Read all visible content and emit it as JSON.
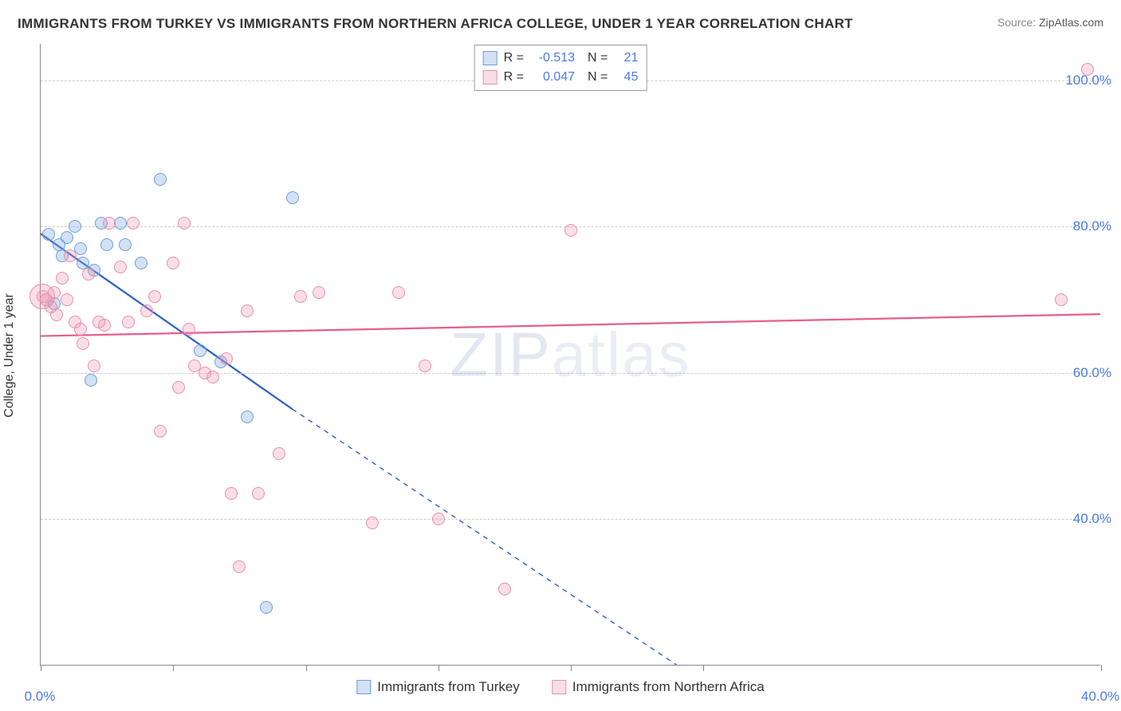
{
  "title": "IMMIGRANTS FROM TURKEY VS IMMIGRANTS FROM NORTHERN AFRICA COLLEGE, UNDER 1 YEAR CORRELATION CHART",
  "source_label": "Source:",
  "source_value": "ZipAtlas.com",
  "y_axis_label": "College, Under 1 year",
  "watermark_bold": "ZIP",
  "watermark_thin": "atlas",
  "chart": {
    "type": "scatter",
    "background_color": "#ffffff",
    "grid_color": "#cccccc",
    "axis_color": "#888888",
    "xlim": [
      0,
      40
    ],
    "ylim": [
      20,
      105
    ],
    "x_ticks": [
      0,
      5,
      10,
      15,
      20,
      25,
      40
    ],
    "x_tick_labels": {
      "0": "0.0%",
      "40": "40.0%"
    },
    "y_gridlines": [
      40,
      60,
      80,
      100
    ],
    "y_tick_labels": {
      "40": "40.0%",
      "60": "60.0%",
      "80": "80.0%",
      "100": "100.0%"
    },
    "tick_label_color": "#4a7ae2",
    "tick_label_fontsize": 17,
    "series": [
      {
        "name": "Immigrants from Turkey",
        "marker_fill": "rgba(127,169,226,0.35)",
        "marker_stroke": "#6f9fd8",
        "marker_radius": 8,
        "R_label": "R =",
        "R": "-0.513",
        "N_label": "N =",
        "N": "21",
        "trend": {
          "solid_from": [
            0,
            79
          ],
          "solid_to": [
            9.5,
            55
          ],
          "dashed_to": [
            24,
            20
          ],
          "color": "#2b5fc4",
          "width": 2.2
        },
        "points": [
          [
            0.3,
            79
          ],
          [
            0.7,
            77.5
          ],
          [
            0.8,
            76
          ],
          [
            1.0,
            78.5
          ],
          [
            1.3,
            80
          ],
          [
            1.5,
            77
          ],
          [
            1.6,
            75
          ],
          [
            1.9,
            59
          ],
          [
            2.0,
            74
          ],
          [
            2.3,
            80.5
          ],
          [
            2.5,
            77.5
          ],
          [
            3.0,
            80.5
          ],
          [
            3.2,
            77.5
          ],
          [
            3.8,
            75
          ],
          [
            4.5,
            86.5
          ],
          [
            6.0,
            63
          ],
          [
            6.8,
            61.5
          ],
          [
            7.8,
            54
          ],
          [
            8.5,
            28
          ],
          [
            9.5,
            84
          ],
          [
            0.5,
            69.5
          ]
        ]
      },
      {
        "name": "Immigrants from Northern Africa",
        "marker_fill": "rgba(236,145,173,0.30)",
        "marker_stroke": "#e78fb0",
        "marker_radius": 8,
        "R_label": "R =",
        "R": "0.047",
        "N_label": "N =",
        "N": "45",
        "trend": {
          "solid_from": [
            0,
            65
          ],
          "solid_to": [
            40,
            68
          ],
          "dashed_to": null,
          "color": "#e75d8f",
          "width": 2.2
        },
        "points": [
          [
            0.2,
            70
          ],
          [
            0.4,
            69
          ],
          [
            0.5,
            71
          ],
          [
            0.6,
            68
          ],
          [
            0.8,
            73
          ],
          [
            1.0,
            70
          ],
          [
            1.1,
            76
          ],
          [
            1.3,
            67
          ],
          [
            1.5,
            66
          ],
          [
            1.8,
            73.5
          ],
          [
            2.0,
            61
          ],
          [
            2.2,
            67
          ],
          [
            2.4,
            66.5
          ],
          [
            2.6,
            80.5
          ],
          [
            3.0,
            74.5
          ],
          [
            3.3,
            67
          ],
          [
            3.5,
            80.5
          ],
          [
            4.0,
            68.5
          ],
          [
            4.3,
            70.5
          ],
          [
            4.5,
            52
          ],
          [
            5.0,
            75
          ],
          [
            5.2,
            58
          ],
          [
            5.4,
            80.5
          ],
          [
            5.6,
            66
          ],
          [
            5.8,
            61
          ],
          [
            6.2,
            60
          ],
          [
            6.5,
            59.5
          ],
          [
            7.0,
            62
          ],
          [
            7.2,
            43.5
          ],
          [
            7.5,
            33.5
          ],
          [
            7.8,
            68.5
          ],
          [
            8.2,
            43.5
          ],
          [
            9.0,
            49
          ],
          [
            9.8,
            70.5
          ],
          [
            10.5,
            71
          ],
          [
            12.5,
            39.5
          ],
          [
            13.5,
            71
          ],
          [
            14.5,
            61
          ],
          [
            15.0,
            40
          ],
          [
            17.5,
            30.5
          ],
          [
            20.0,
            79.5
          ],
          [
            38.5,
            70
          ],
          [
            39.5,
            101.5
          ],
          [
            0.1,
            70.5
          ],
          [
            1.6,
            64
          ]
        ],
        "large_points": [
          {
            "xy": [
              0.05,
              70.5
            ],
            "radius": 16
          }
        ]
      }
    ]
  },
  "stats_legend_border": "#999999",
  "bottom_legend_fontsize": 17
}
